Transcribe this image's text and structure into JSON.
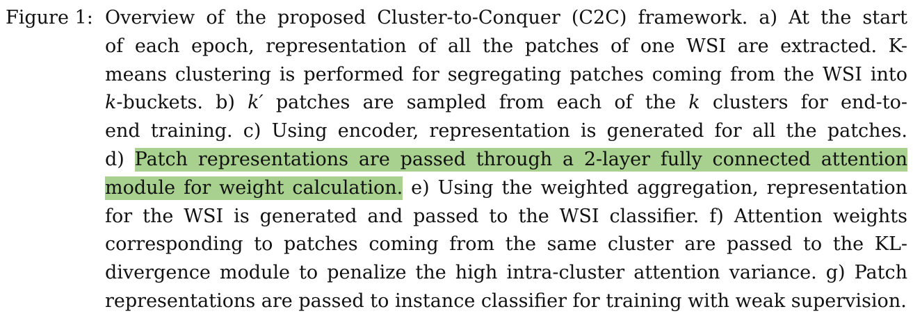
{
  "caption": {
    "label": "Figure 1:",
    "lines": [
      "Overview of the proposed Cluster-to-Conquer (C2C) framework. a) At the start",
      "of each epoch, representation of all the patches of one WSI are extracted. K-",
      "means clustering is performed for segregating patches coming from the WSI into",
      {
        "math": "k",
        "rest": "-buckets. b) "
      },
      "end training. c) Using encoder, representation is generated for all the patches.",
      {
        "pre": "d) ",
        "hl": "Patch representations are passed through a 2-layer fully connected attention"
      },
      {
        "hl": "module for weight calculation.",
        "post": " e) Using the weighted aggregation, representation"
      },
      "for the WSI is generated and passed to the WSI classifier. f) Attention weights",
      "corresponding to patches coming from the same cluster are passed to the KL-",
      "divergence module to penalize the high intra-cluster attention variance. g) Patch",
      "representations are passed to instance classifier for training with weak supervision."
    ],
    "line4": {
      "math1": "k",
      "text1": "-buckets. b) ",
      "math2": "k′",
      "text2": " patches are sampled from each of the ",
      "math3": "k",
      "text3": " clusters for end-to-"
    }
  }
}
